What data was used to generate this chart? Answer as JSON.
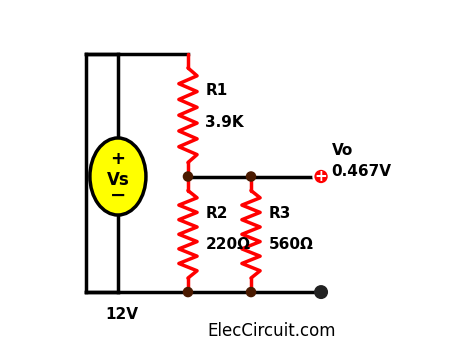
{
  "bg_color": "#ffffff",
  "wire_color": "#000000",
  "resistor_color": "#ff0000",
  "dot_color": "#4a1a00",
  "source_fill": "#ffff00",
  "source_stroke": "#000000",
  "plus_color": "#ff0000",
  "text_color": "#000000",
  "title_text": "ElecCircuit.com",
  "vs_label": "Vs",
  "vs_voltage": "12V",
  "r1_label": "R1",
  "r1_value": "3.9K",
  "r2_label": "R2",
  "r2_value": "220Ω",
  "r3_label": "R3",
  "r3_value": "560Ω",
  "vo_label": "Vo",
  "vo_value": "0.467V"
}
